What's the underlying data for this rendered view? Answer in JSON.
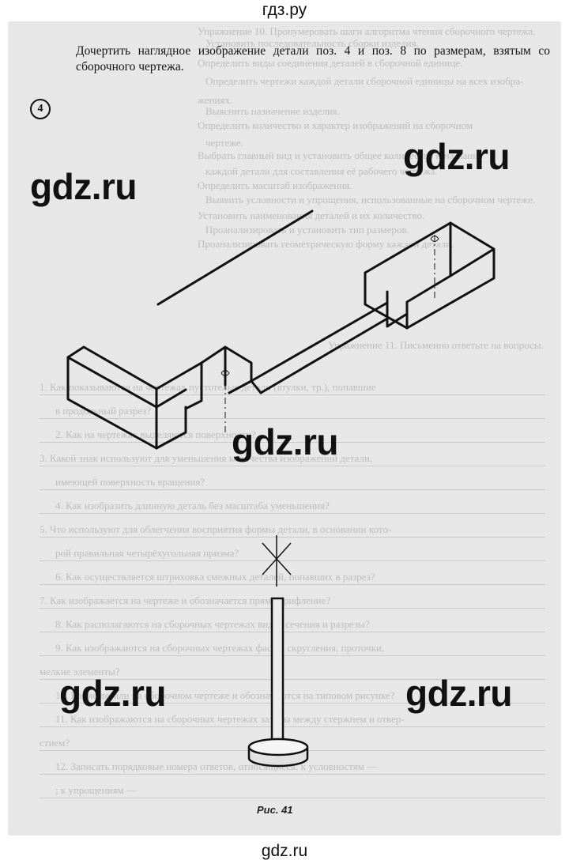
{
  "site": {
    "header": "гдз.ру",
    "footer": "gdz.ru"
  },
  "exercise": {
    "instruction": "Дочертить наглядное изображение детали поз. 4 и поз. 8 по размерам, взятым со сборочного чертежа.",
    "part_number": "4",
    "figure_caption": "Рис. 41"
  },
  "watermarks": [
    "gdz.ru",
    "gdz.ru",
    "gdz.ru",
    "gdz.ru",
    "gdz.ru"
  ],
  "faded_text": {
    "right_column": [
      "Упражнение 10. Пронумеровать шаги алгоритма чтения сборочного чертежа.",
      "Установить последовательность сборки изделия.",
      "Определить виды соединения деталей в сборочной единице.",
      "Определить чертежи каждой детали сборочной единицы на всех изобра-",
      "жениях.",
      "Выяснить назначение изделия.",
      "Определить количество и характер изображений на сборочном",
      "чертеже.",
      "Выбрать главный вид и установить общее количество и название",
      "каждой детали для составления её рабочего чертежа.",
      "Определить масштаб изображения.",
      "Выявить условности и упрощения, использованные на сборочном чертеже.",
      "Установить наименования деталей и их количество.",
      "Проанализировать и установить тип размеров.",
      "Проанализировать геометрическую форму каждой детали."
    ],
    "section_heading": "Упражнение 11. Письменно ответьте на вопросы.",
    "questions": [
      "1. Как показываются на чертежах пустотелые детали (втулки, тр.), попавшие",
      "в продольный разрез?",
      "2. Как на чертежах выделяются поверхности?",
      "3. Какой знак используют для уменьшения количества изображений детали,",
      "имеющей поверхность вращения?",
      "4. Как изобразить длинную деталь без масштаба уменьшения?",
      "5. Что используют для облегчения восприятия формы детали, в основании кото-",
      "рой правильная четырёхугольная призма?",
      "6. Как осуществляется штриховка смежных деталей, попавших в разрез?",
      "7. Как изображается на чертеже и обозначается прямое рифление?",
      "8. Как располагаются на сборочных чертежах виды, сечения и разрезы?",
      "9. Как изображаются на сборочных чертежах фаски, скругления, проточки,",
      "мелкие элементы?",
      "10. Какие детали на сборочном чертеже и обозначаются на типовом рисунке?",
      "11. Как изображаются на сборочных чертежах зазоры между стержнем и отвер-",
      "стием?",
      "12. Записать порядковые номера ответов, относящиеся: к условностям —",
      "; к упрощениям —"
    ]
  }
}
